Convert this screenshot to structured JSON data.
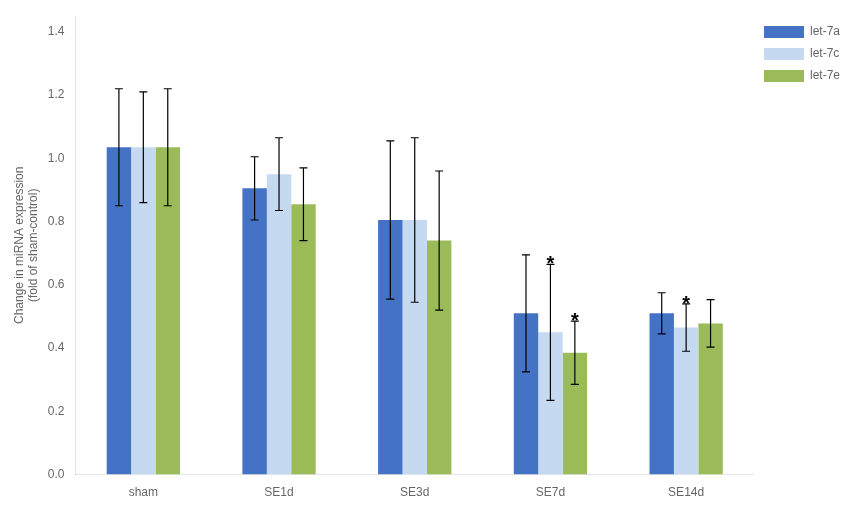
{
  "chart_data": {
    "type": "bar",
    "categories": [
      "sham",
      "SE1d",
      "SE3d",
      "SE7d",
      "SE14d"
    ],
    "series": [
      {
        "name": "let-7a",
        "color": "#4472C4",
        "values": [
          1.035,
          0.905,
          0.805,
          0.51,
          0.51
        ],
        "errors": [
          0.185,
          0.1,
          0.25,
          0.185,
          0.065
        ]
      },
      {
        "name": "let-7c",
        "color": "#C5D9F1",
        "values": [
          1.035,
          0.95,
          0.805,
          0.45,
          0.465
        ],
        "errors": [
          0.175,
          0.115,
          0.26,
          0.215,
          0.075
        ]
      },
      {
        "name": "let-7e",
        "color": "#9BBB59",
        "values": [
          1.035,
          0.855,
          0.74,
          0.385,
          0.478
        ],
        "errors": [
          0.185,
          0.115,
          0.22,
          0.1,
          0.075
        ]
      }
    ],
    "annotations": [
      {
        "text": "*",
        "category": "SE7d",
        "series": "let-7c"
      },
      {
        "text": "*",
        "category": "SE7d",
        "series": "let-7e"
      },
      {
        "text": "*",
        "category": "SE14d",
        "series": "let-7c"
      }
    ],
    "ylabel": "Change in miRNA expression\n(fold of sham-control)",
    "ylim": [
      0,
      1.45
    ],
    "yticks": [
      {
        "value": 0,
        "label": "0.0"
      },
      0.2,
      0.4,
      0.6,
      0.8,
      {
        "value": 1.0,
        "label": "1.0"
      },
      1.2,
      1.4
    ],
    "grid": false,
    "legend": "right"
  }
}
